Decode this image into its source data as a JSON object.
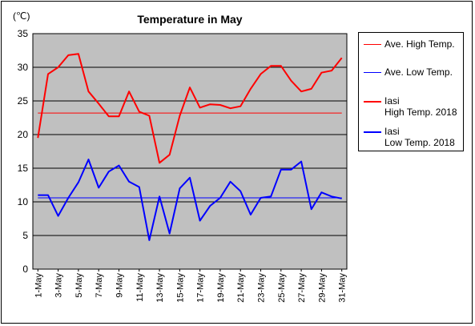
{
  "chart_data": {
    "type": "line",
    "title": "Temperature in May",
    "unit_label": "(℃)",
    "ylim": [
      0,
      35
    ],
    "y_ticks": [
      0,
      5,
      10,
      15,
      20,
      25,
      30,
      35
    ],
    "x_tick_labels": [
      "1-May",
      "3-May",
      "5-May",
      "7-May",
      "9-May",
      "11-May",
      "13-May",
      "15-May",
      "17-May",
      "19-May",
      "21-May",
      "23-May",
      "25-May",
      "27-May",
      "29-May",
      "31-May"
    ],
    "x": [
      1,
      2,
      3,
      4,
      5,
      6,
      7,
      8,
      9,
      10,
      11,
      12,
      13,
      14,
      15,
      16,
      17,
      18,
      19,
      20,
      21,
      22,
      23,
      24,
      25,
      26,
      27,
      28,
      29,
      30,
      31
    ],
    "grid": true,
    "legend_position": "right",
    "series": [
      {
        "name": "Ave. High Temp.",
        "color": "#ff0000",
        "style": "thin",
        "values": [
          23.2,
          23.2,
          23.2,
          23.2,
          23.2,
          23.2,
          23.2,
          23.2,
          23.2,
          23.2,
          23.2,
          23.2,
          23.2,
          23.2,
          23.2,
          23.2,
          23.2,
          23.2,
          23.2,
          23.2,
          23.2,
          23.2,
          23.2,
          23.2,
          23.2,
          23.2,
          23.2,
          23.2,
          23.2,
          23.2,
          23.2
        ]
      },
      {
        "name": "Ave. Low Temp.",
        "color": "#0000ff",
        "style": "thin",
        "values": [
          10.6,
          10.6,
          10.6,
          10.6,
          10.6,
          10.6,
          10.6,
          10.6,
          10.6,
          10.6,
          10.6,
          10.6,
          10.6,
          10.6,
          10.6,
          10.6,
          10.6,
          10.6,
          10.6,
          10.6,
          10.6,
          10.6,
          10.6,
          10.6,
          10.6,
          10.6,
          10.6,
          10.6,
          10.6,
          10.6,
          10.6
        ]
      },
      {
        "name": "Iasi High Temp. 2018",
        "name_lines": [
          "Iasi",
          "High Temp. 2018"
        ],
        "color": "#ff0000",
        "style": "thick",
        "values": [
          19.5,
          29.0,
          30.0,
          31.8,
          32.0,
          26.4,
          24.6,
          22.7,
          22.7,
          26.4,
          23.4,
          22.8,
          15.8,
          17.0,
          22.8,
          27.0,
          24.0,
          24.5,
          24.4,
          23.9,
          24.2,
          26.8,
          29.0,
          30.2,
          30.2,
          28.0,
          26.4,
          26.8,
          29.2,
          29.5,
          31.4
        ]
      },
      {
        "name": "Iasi Low Temp. 2018",
        "name_lines": [
          "Iasi",
          "Low Temp. 2018"
        ],
        "color": "#0000ff",
        "style": "thick",
        "values": [
          11.0,
          11.0,
          7.9,
          10.6,
          12.9,
          16.3,
          12.1,
          14.5,
          15.4,
          13.0,
          12.2,
          4.3,
          10.8,
          5.3,
          12.0,
          13.6,
          7.2,
          9.4,
          10.6,
          13.0,
          11.6,
          8.1,
          10.6,
          10.8,
          14.8,
          14.8,
          16.0,
          8.9,
          11.4,
          10.8,
          10.5
        ]
      }
    ]
  }
}
